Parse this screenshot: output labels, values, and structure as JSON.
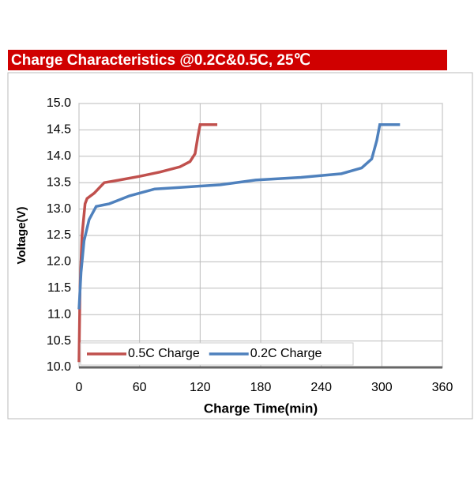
{
  "chart_data": {
    "type": "line",
    "title": "Charge  Characteristics @0.2C&0.5C, 25℃",
    "x_label": "Charge Time(min)",
    "y_label": "Voltage(V)",
    "xlim": [
      0,
      360
    ],
    "xticks": [
      0,
      60,
      120,
      180,
      240,
      300,
      360
    ],
    "ylim": [
      10,
      15
    ],
    "yticks": [
      {
        "value": 10,
        "label": "10.0"
      },
      10.5,
      {
        "value": 11,
        "label": "11.0"
      },
      11.5,
      {
        "value": 12,
        "label": "12.0"
      },
      12.5,
      {
        "value": 13,
        "label": "13.0"
      },
      13.5,
      {
        "value": 14,
        "label": "14.0"
      },
      14.5,
      {
        "value": 15,
        "label": "15.0"
      }
    ],
    "grid": true,
    "legend": "lower left",
    "series": [
      {
        "name": "0.5C Charge",
        "color": "#c0504d",
        "x": [
          0,
          1,
          3,
          6,
          8,
          15,
          25,
          40,
          60,
          80,
          100,
          110,
          115,
          118,
          120,
          137
        ],
        "values": [
          10.1,
          11.5,
          12.5,
          13.1,
          13.2,
          13.3,
          13.5,
          13.55,
          13.62,
          13.7,
          13.8,
          13.9,
          14.05,
          14.4,
          14.6,
          14.6
        ]
      },
      {
        "name": "0.2C Charge",
        "color": "#4f81bd",
        "x": [
          0,
          2,
          5,
          10,
          17,
          30,
          50,
          75,
          100,
          140,
          175,
          220,
          260,
          280,
          290,
          295,
          298,
          318
        ],
        "values": [
          11.1,
          11.8,
          12.4,
          12.8,
          13.05,
          13.1,
          13.25,
          13.38,
          13.41,
          13.46,
          13.55,
          13.6,
          13.67,
          13.78,
          13.95,
          14.3,
          14.6,
          14.6
        ]
      }
    ]
  }
}
